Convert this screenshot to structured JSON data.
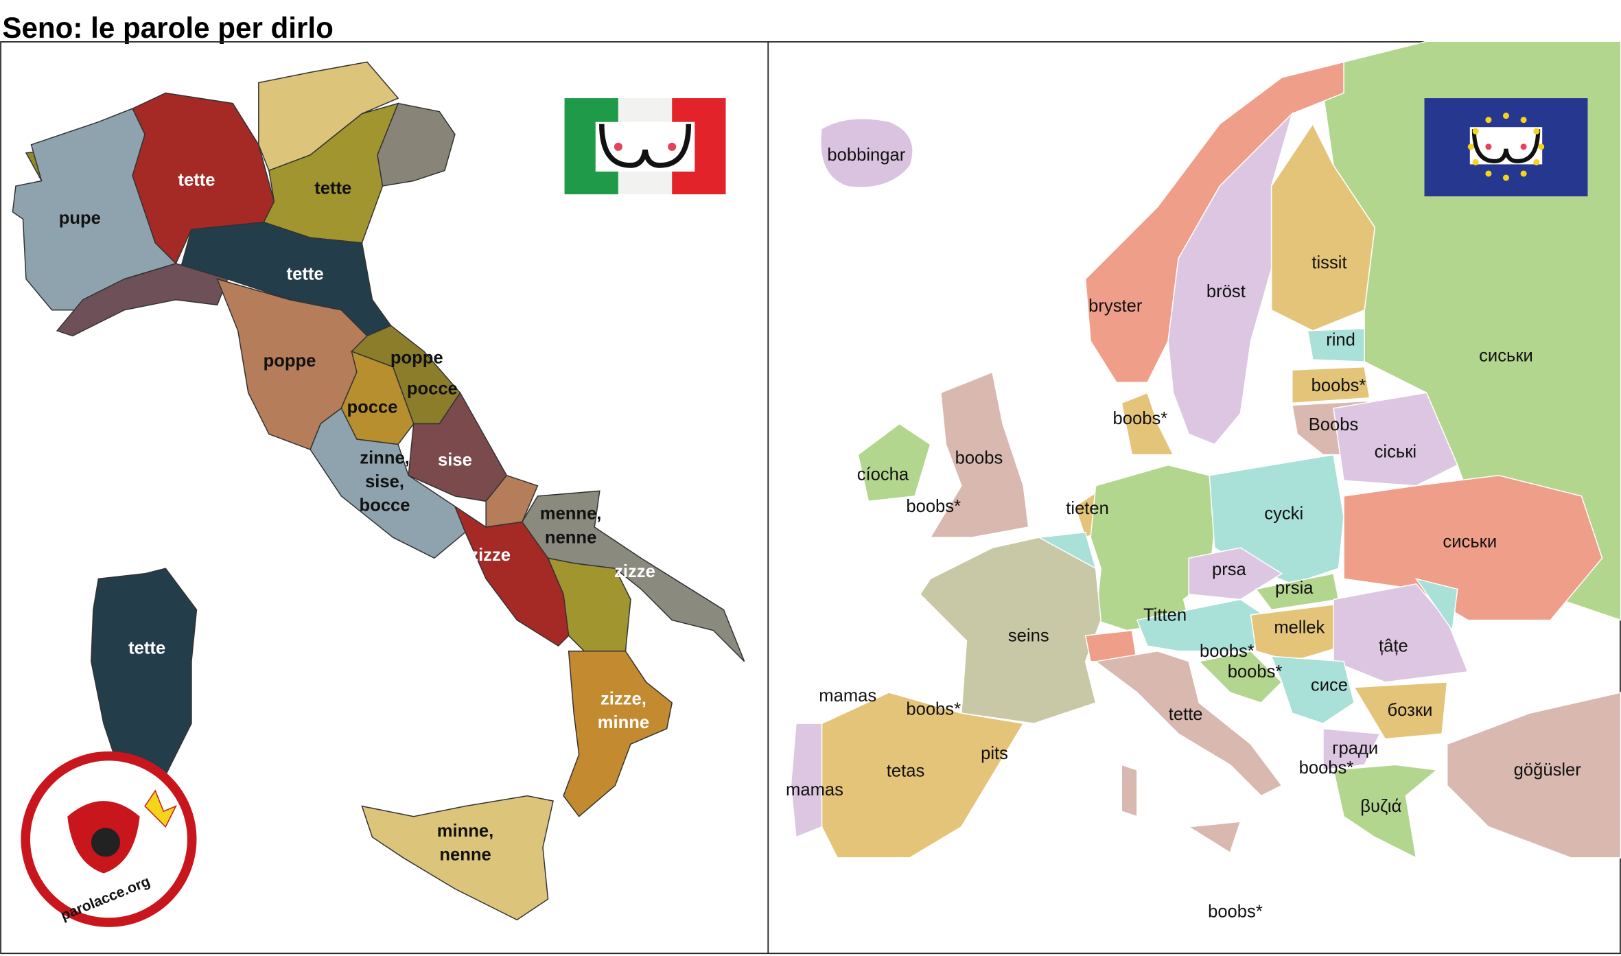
{
  "title": "Seno: le parole per dirlo",
  "italy": {
    "labels": [
      [
        "tette"
      ],
      [
        "tette"
      ],
      [
        "pupe"
      ],
      [
        "tette"
      ],
      [
        "poppe"
      ],
      [
        "poppe"
      ],
      [
        "pocce"
      ],
      [
        "pocce"
      ],
      [
        "sise"
      ],
      [
        "zinne,",
        "sise,",
        "bocce"
      ],
      [
        "menne,",
        "nenne"
      ],
      [
        "zizze"
      ],
      [
        "zizze"
      ],
      [
        "tette"
      ],
      [
        "zizze,",
        "minne"
      ],
      [
        "minne,",
        "nenne"
      ]
    ]
  },
  "europe": {
    "labels": [
      "bobbingar",
      "bryster",
      "bröst",
      "tissit",
      "rind",
      "сиськи",
      "boobs*",
      "boobs*",
      "Boobs",
      "сіські",
      "boobs",
      "cíocha",
      "boobs*",
      "tieten",
      "cycki",
      "сиськи",
      "prsa",
      "prsia",
      "Titten",
      "seins",
      "mellek",
      "țâțe",
      "boobs*",
      "boobs*",
      "сисе",
      "mamas",
      "boobs*",
      "бозки",
      "tette",
      "pits",
      "гради",
      "boobs*",
      "tetas",
      "göğüsler",
      "mamas",
      "βυζιά",
      "boobs*"
    ]
  },
  "logo": "parolacce.org"
}
